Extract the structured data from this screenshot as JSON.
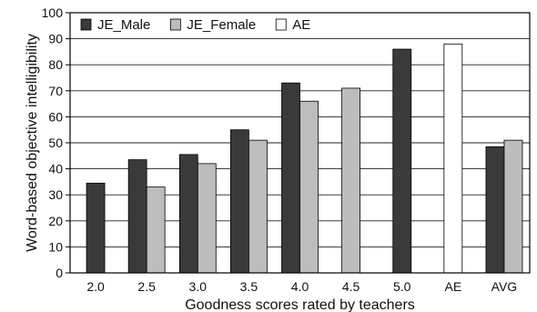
{
  "chart_data": {
    "type": "bar",
    "xlabel": "Goodness scores rated by teachers",
    "ylabel": "Word-based objective intelligibility",
    "ylim": [
      0,
      100
    ],
    "yticks": [
      0,
      10,
      20,
      30,
      40,
      50,
      60,
      70,
      80,
      90,
      100
    ],
    "categories": [
      "2.0",
      "2.5",
      "3.0",
      "3.5",
      "4.0",
      "4.5",
      "5.0",
      "AE",
      "AVG"
    ],
    "legend_position": "top-left",
    "grid": "horizontal",
    "series": [
      {
        "name": "JE_Male",
        "color": "#3a3a3a",
        "values": [
          34.5,
          43.5,
          45.5,
          55,
          73,
          null,
          86,
          null,
          48.5
        ]
      },
      {
        "name": "JE_Female",
        "color": "#bdbdbd",
        "values": [
          null,
          33,
          42,
          51,
          66,
          71,
          null,
          null,
          51
        ]
      },
      {
        "name": "AE",
        "color": "#ffffff",
        "values": [
          null,
          null,
          null,
          null,
          null,
          null,
          null,
          88,
          null
        ]
      }
    ]
  }
}
